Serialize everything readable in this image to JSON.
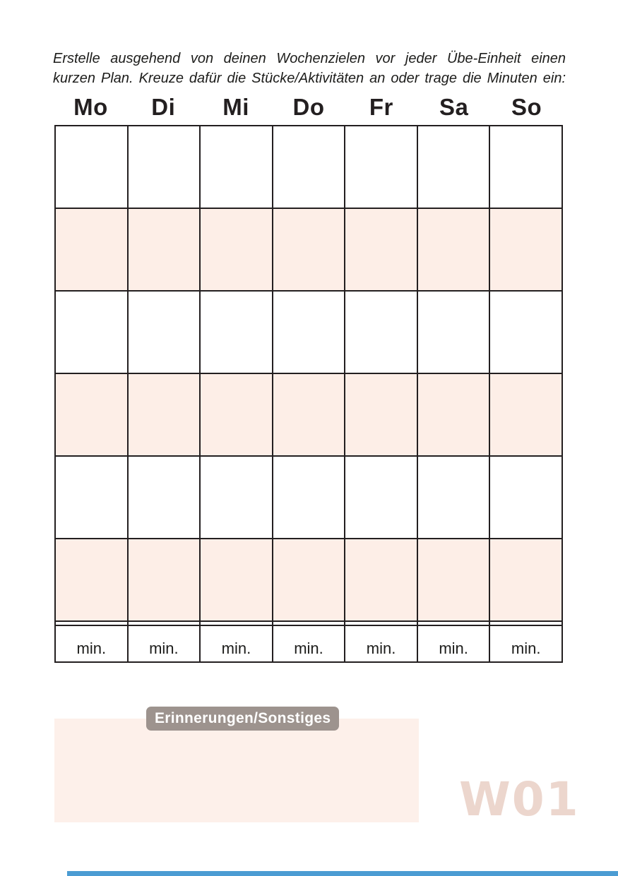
{
  "instruction": {
    "line1": "Erstelle ausgehend von deinen Wochenzielen vor jeder Übe-Einheit einen",
    "line2": "kurzen Plan. Kreuze dafür die Stücke/Aktivitäten an oder trage die Minuten ein:"
  },
  "days": [
    "Mo",
    "Di",
    "Mi",
    "Do",
    "Fr",
    "Sa",
    "So"
  ],
  "grid": {
    "rows": 6,
    "columns": 7,
    "min_label": "min."
  },
  "reminders": {
    "label": "Erinnerungen/Sonstiges"
  },
  "week_label": "W01",
  "colors": {
    "cell_peach": "#fdeee7",
    "box_peach": "#fdf0ea",
    "badge_gray": "#9d938e",
    "grid_line": "#231f20",
    "week_label_pink": "#ecd6cd",
    "footer_blue": "#4b9cd3",
    "text_black": "#1d1d1b"
  }
}
